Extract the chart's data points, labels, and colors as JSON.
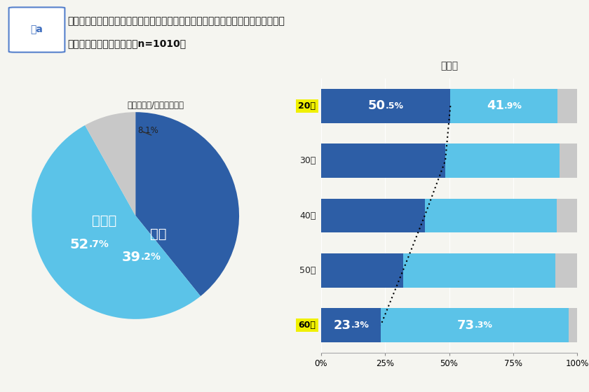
{
  "title_box_text": "図a",
  "title_line1": "あなたは新卒・中途で入社してから３か月以内に転職または退職をしたいと感じる",
  "title_line2": "ことがありましたか？　（n=1010）",
  "pie_values": [
    39.2,
    52.7,
    8.1
  ],
  "pie_colors": [
    "#2d5ea6",
    "#5bc3e8",
    "#c8c8c8"
  ],
  "pie_startangle": 90,
  "pie_label_hai": "はい",
  "pie_label_hai_pct_big": "39",
  "pie_label_hai_pct_small": ".2%",
  "pie_label_iie": "いいえ",
  "pie_label_iie_pct_big": "52",
  "pie_label_iie_pct_small": ".7%",
  "pie_label_waka": "わからない/答えられない",
  "pie_label_waka_pct": "8.1%",
  "bar_title": "世代別",
  "categories": [
    "20代",
    "30代",
    "40代",
    "50代",
    "60代"
  ],
  "hai_values": [
    50.5,
    48.5,
    40.5,
    32.0,
    23.3
  ],
  "iie_values": [
    41.9,
    44.5,
    51.5,
    59.5,
    73.3
  ],
  "waka_values": [
    7.6,
    7.0,
    8.0,
    8.5,
    3.4
  ],
  "dark_blue": "#2d5ea6",
  "light_blue": "#5bc3e8",
  "gray_bar": "#c8c8c8",
  "highlight_rows": [
    "20代",
    "60代"
  ],
  "highlight_color": "#f0f000",
  "bg_color": "#f5f5f0",
  "header_bg": "#ebebdf",
  "title_box_color": "#3d6dbf",
  "title_box_border": "#5580cc"
}
